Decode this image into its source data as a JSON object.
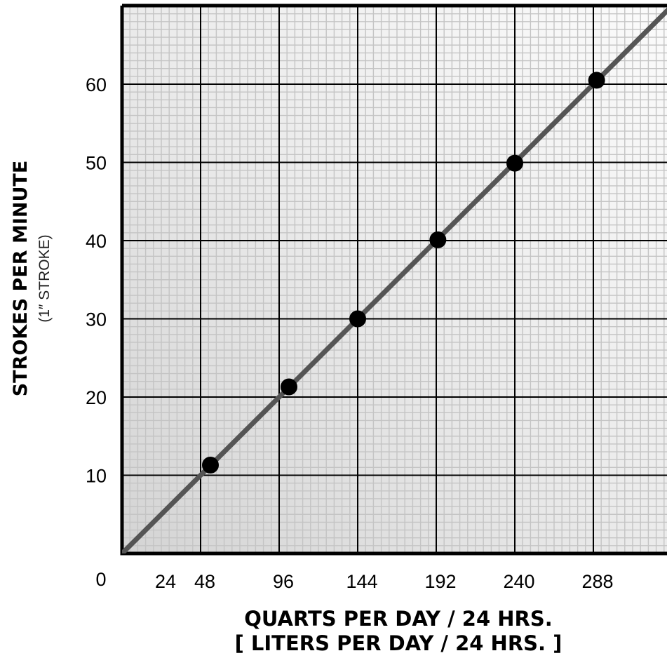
{
  "chart_data": {
    "type": "line",
    "xlabel": "QUARTS PER DAY / 24 HRS.",
    "xlabel_sub": "[ LITERS PER DAY / 24 HRS. ]",
    "ylabel": "STROKES PER MINUTE",
    "ylabel_sub": "(1″ STROKE)",
    "origin_label": "0",
    "x_ticks": [
      24,
      48,
      96,
      144,
      192,
      240,
      288
    ],
    "y_ticks": [
      10,
      20,
      30,
      40,
      50,
      60
    ],
    "xlim": [
      0,
      336
    ],
    "ylim": [
      0,
      70
    ],
    "grid": true,
    "series": [
      {
        "points": [
          {
            "x": 54,
            "y": 11.3
          },
          {
            "x": 102,
            "y": 21.3
          },
          {
            "x": 144,
            "y": 30
          },
          {
            "x": 193,
            "y": 40.1
          },
          {
            "x": 240,
            "y": 49.9
          },
          {
            "x": 290,
            "y": 60.5
          }
        ],
        "trend_line": {
          "x": [
            0,
            336
          ],
          "y": [
            0,
            70
          ]
        }
      }
    ],
    "colors": {
      "line": "#555555",
      "marker": "#000000",
      "grid_major": "#000000",
      "grid_minor": "#c4c4c4",
      "border": "#000000"
    }
  }
}
